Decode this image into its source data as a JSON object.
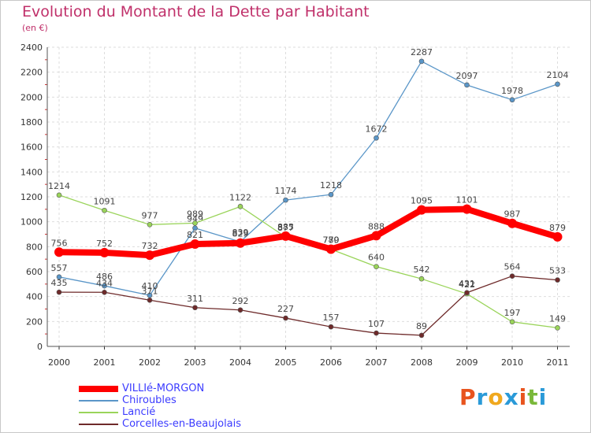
{
  "title": "Evolution du Montant de la Dette par Habitant",
  "subtitle": "(en €)",
  "chart_data": {
    "type": "line",
    "title": "Evolution du Montant de la Dette par Habitant",
    "ylabel": "(en €)",
    "xlabel": "",
    "ylim": [
      0,
      2400
    ],
    "yticks": [
      0,
      200,
      400,
      600,
      800,
      1000,
      1200,
      1400,
      1600,
      1800,
      2000,
      2200,
      2400
    ],
    "grid": true,
    "legend_position": "bottom-left",
    "x": [
      "2000",
      "2001",
      "2002",
      "2003",
      "2004",
      "2005",
      "2006",
      "2007",
      "2008",
      "2009",
      "2010",
      "2011"
    ],
    "series": [
      {
        "name": "Chiroubles",
        "color": "#5a96c8",
        "values": [
          557,
          486,
          410,
          949,
          839,
          1174,
          1218,
          1672,
          2287,
          2097,
          1978,
          2104
        ]
      },
      {
        "name": "Lancié",
        "color": "#9ad45a",
        "values": [
          1214,
          1091,
          977,
          989,
          1122,
          877,
          779,
          640,
          542,
          422,
          197,
          149
        ]
      },
      {
        "name": "Corcelles-en-Beaujolais",
        "color": "#6e2a2a",
        "values": [
          435,
          434,
          371,
          311,
          292,
          227,
          157,
          107,
          89,
          431,
          564,
          533
        ]
      },
      {
        "name": "VILLIé-MORGON",
        "color": "#ff0000",
        "values": [
          756,
          752,
          732,
          821,
          829,
          885,
          780,
          888,
          1095,
          1101,
          987,
          879
        ]
      }
    ]
  },
  "legend": [
    {
      "label": "VILLIé-MORGON",
      "color": "#ff0000"
    },
    {
      "label": "Chiroubles",
      "color": "#5a96c8"
    },
    {
      "label": "Lancié",
      "color": "#9ad45a"
    },
    {
      "label": "Corcelles-en-Beaujolais",
      "color": "#6e2a2a"
    }
  ],
  "logo": {
    "text": "Proxiti",
    "colors": [
      "#e8541e",
      "#2a9ad8",
      "#f0a81e",
      "#2a9ad8",
      "#e8541e",
      "#7ab83a",
      "#2a9ad8"
    ]
  }
}
